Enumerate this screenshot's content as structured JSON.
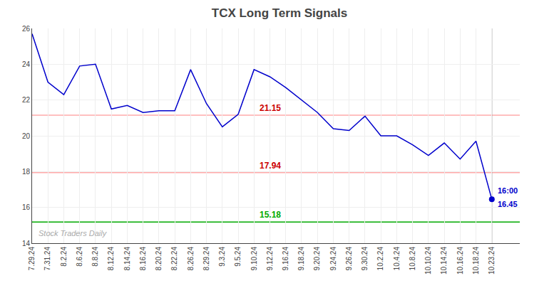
{
  "chart_data": {
    "type": "line",
    "title": "TCX Long Term Signals",
    "categories": [
      "7.29.24",
      "7.31.24",
      "8.2.24",
      "8.6.24",
      "8.8.24",
      "8.12.24",
      "8.14.24",
      "8.16.24",
      "8.20.24",
      "8.22.24",
      "8.26.24",
      "8.29.24",
      "9.3.24",
      "9.5.24",
      "9.10.24",
      "9.12.24",
      "9.16.24",
      "9.18.24",
      "9.20.24",
      "9.24.24",
      "9.26.24",
      "9.30.24",
      "10.2.24",
      "10.4.24",
      "10.8.24",
      "10.10.24",
      "10.14.24",
      "10.16.24",
      "10.18.24",
      "10.23.24"
    ],
    "values": [
      25.7,
      23.0,
      22.3,
      23.9,
      24.0,
      21.5,
      21.7,
      21.3,
      21.4,
      21.4,
      23.7,
      21.8,
      20.5,
      21.2,
      23.7,
      23.3,
      22.7,
      22.0,
      21.3,
      20.4,
      20.3,
      21.1,
      20.0,
      20.0,
      19.5,
      18.9,
      19.6,
      18.7,
      19.7,
      16.45
    ],
    "color": "#0000cc",
    "ylim": [
      14,
      26
    ],
    "yticks": [
      14,
      16,
      18,
      20,
      22,
      24,
      26
    ],
    "grid": true,
    "reference_lines": [
      {
        "value": 21.15,
        "label": "21.15",
        "color": "#ffaaaa",
        "label_color": "#cc0000"
      },
      {
        "value": 17.94,
        "label": "17.94",
        "color": "#ffaaaa",
        "label_color": "#cc0000"
      },
      {
        "value": 15.18,
        "label": "15.18",
        "color": "#00aa00",
        "label_color": "#00aa00"
      }
    ],
    "annotations": [
      {
        "text": "16:00",
        "color": "#0000cc"
      },
      {
        "text": "16.45",
        "color": "#0000cc"
      }
    ],
    "watermark": {
      "text": "Stock Traders Daily",
      "color": "#aaaaaa"
    }
  }
}
